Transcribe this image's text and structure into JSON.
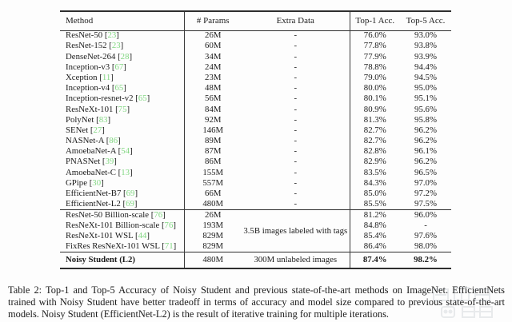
{
  "table": {
    "cite_color": "#82d782",
    "columns": [
      "Method",
      "# Params",
      "Extra Data",
      "Top-1 Acc.",
      "Top-5 Acc."
    ],
    "sections": [
      {
        "rows": [
          {
            "method": "ResNet-50",
            "cite": "23",
            "params": "26M",
            "extra": "-",
            "top1": "76.0%",
            "top5": "93.0%"
          },
          {
            "method": "ResNet-152",
            "cite": "23",
            "params": "60M",
            "extra": "-",
            "top1": "77.8%",
            "top5": "93.8%"
          },
          {
            "method": "DenseNet-264",
            "cite": "28",
            "params": "34M",
            "extra": "-",
            "top1": "77.9%",
            "top5": "93.9%"
          },
          {
            "method": "Inception-v3",
            "cite": "67",
            "params": "24M",
            "extra": "-",
            "top1": "78.8%",
            "top5": "94.4%"
          },
          {
            "method": "Xception",
            "cite": "11",
            "params": "23M",
            "extra": "-",
            "top1": "79.0%",
            "top5": "94.5%"
          },
          {
            "method": "Inception-v4",
            "cite": "65",
            "params": "48M",
            "extra": "-",
            "top1": "80.0%",
            "top5": "95.0%"
          },
          {
            "method": "Inception-resnet-v2",
            "cite": "65",
            "params": "56M",
            "extra": "-",
            "top1": "80.1%",
            "top5": "95.1%"
          },
          {
            "method": "ResNeXt-101",
            "cite": "75",
            "params": "84M",
            "extra": "-",
            "top1": "80.9%",
            "top5": "95.6%"
          },
          {
            "method": "PolyNet",
            "cite": "83",
            "params": "92M",
            "extra": "-",
            "top1": "81.3%",
            "top5": "95.8%"
          },
          {
            "method": "SENet",
            "cite": "27",
            "params": "146M",
            "extra": "-",
            "top1": "82.7%",
            "top5": "96.2%"
          },
          {
            "method": "NASNet-A",
            "cite": "86",
            "params": "89M",
            "extra": "-",
            "top1": "82.7%",
            "top5": "96.2%"
          },
          {
            "method": "AmoebaNet-A",
            "cite": "54",
            "params": "87M",
            "extra": "-",
            "top1": "82.8%",
            "top5": "96.1%"
          },
          {
            "method": "PNASNet",
            "cite": "39",
            "params": "86M",
            "extra": "-",
            "top1": "82.9%",
            "top5": "96.2%"
          },
          {
            "method": "AmoebaNet-C",
            "cite": "13",
            "params": "155M",
            "extra": "-",
            "top1": "83.5%",
            "top5": "96.5%"
          },
          {
            "method": "GPipe",
            "cite": "30",
            "params": "557M",
            "extra": "-",
            "top1": "84.3%",
            "top5": "97.0%"
          },
          {
            "method": "EfficientNet-B7",
            "cite": "69",
            "params": "66M",
            "extra": "-",
            "top1": "85.0%",
            "top5": "97.2%"
          },
          {
            "method": "EfficientNet-L2",
            "cite": "69",
            "params": "480M",
            "extra": "-",
            "top1": "85.5%",
            "top5": "97.5%"
          }
        ]
      },
      {
        "merged_extra": "3.5B images labeled with tags",
        "rows": [
          {
            "method": "ResNet-50 Billion-scale",
            "cite": "76",
            "params": "26M",
            "top1": "81.2%",
            "top5": "96.0%"
          },
          {
            "method": "ResNeXt-101 Billion-scale",
            "cite": "76",
            "params": "193M",
            "top1": "84.8%",
            "top5": "-"
          },
          {
            "method": "ResNeXt-101 WSL",
            "cite": "44",
            "params": "829M",
            "top1": "85.4%",
            "top5": "97.6%"
          },
          {
            "method": "FixRes ResNeXt-101 WSL",
            "cite": "71",
            "params": "829M",
            "top1": "86.4%",
            "top5": "98.0%"
          }
        ]
      },
      {
        "rows": [
          {
            "method": "Noisy Student (L2)",
            "cite": null,
            "params": "480M",
            "extra": "300M unlabeled images",
            "top1": "87.4%",
            "top5": "98.2%",
            "bold": true
          }
        ]
      }
    ]
  },
  "caption": {
    "text": "Table 2: Top-1 and Top-5 Accuracy of Noisy Student and previous state-of-the-art methods on ImageNet. EfficientNets trained with Noisy Student have better tradeoff in terms of accuracy and model size compared to previous state-of-the-art models. Noisy Student (EfficientNet-L2) is the result of iterative training for multiple iterations."
  },
  "watermark": {
    "description": "faint gray logo watermark, bottom right"
  }
}
